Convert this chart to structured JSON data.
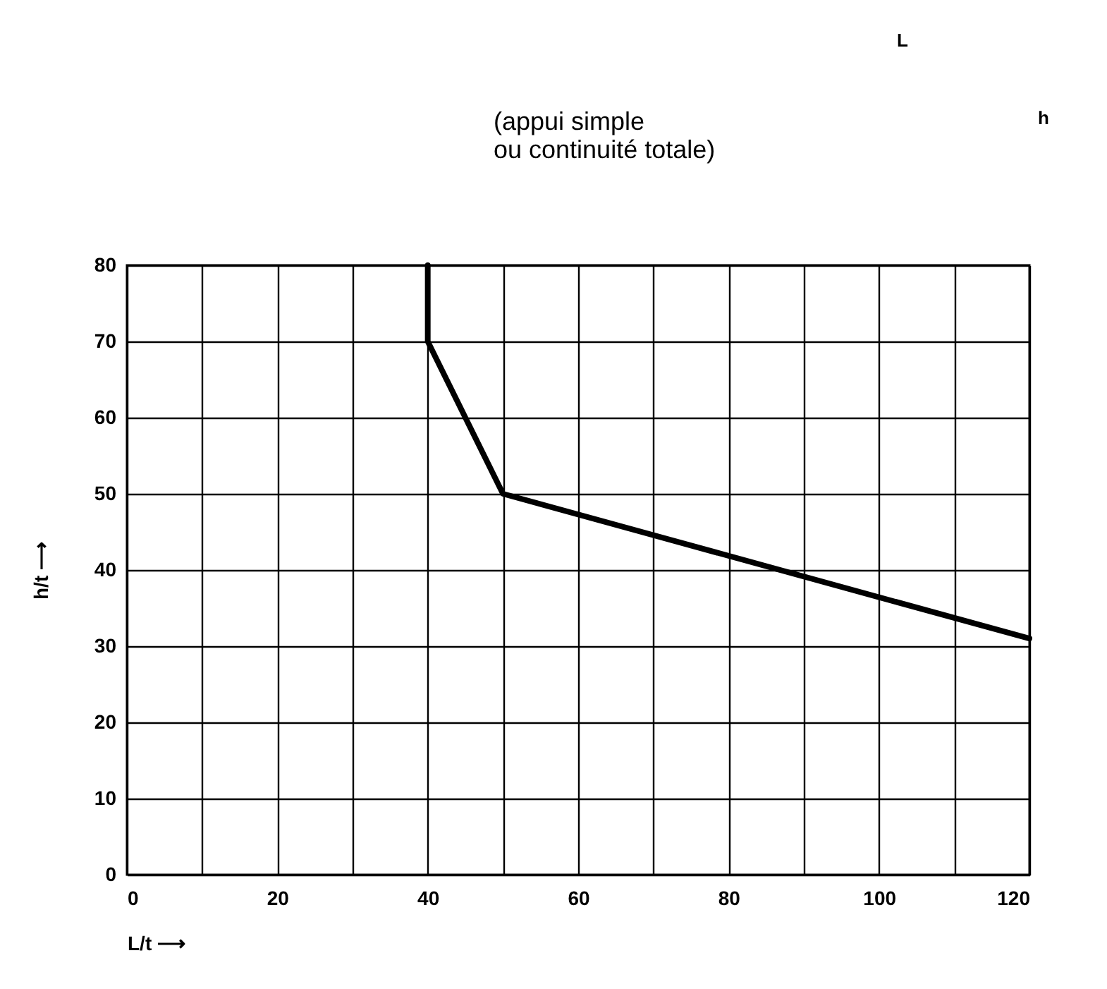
{
  "chart_data": {
    "type": "line",
    "xlabel": "L/t  ⟶",
    "ylabel": "h/t  ⟶",
    "x": [
      40,
      40,
      50,
      120
    ],
    "series": [
      {
        "color": "#000000",
        "values": [
          80,
          70,
          50,
          31
        ]
      }
    ],
    "xlim": [
      0,
      120
    ],
    "ylim": [
      0,
      80
    ],
    "xticks": [
      0,
      {
        "value": 10,
        "label": null
      },
      20,
      {
        "value": 30,
        "label": null
      },
      40,
      {
        "value": 50,
        "label": null
      },
      60,
      {
        "value": 70,
        "label": null
      },
      80,
      {
        "value": 90,
        "label": null
      },
      100,
      {
        "value": 110,
        "label": null
      },
      120
    ],
    "yticks": [
      0,
      10,
      20,
      30,
      40,
      50,
      60,
      70,
      80
    ],
    "grid": true,
    "marker": "none",
    "line_style": "solid",
    "annotations": [
      "(appui simple\nou continuité totale)",
      "L",
      "h"
    ]
  }
}
